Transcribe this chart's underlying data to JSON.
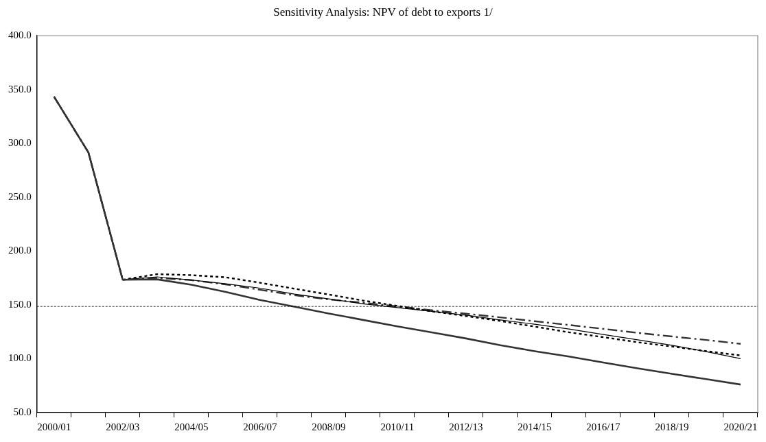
{
  "chart_data": {
    "type": "line",
    "title": "Sensitivity Analysis: NPV of debt to exports 1/",
    "categories": [
      "2000/01",
      null,
      "2002/03",
      null,
      "2004/05",
      null,
      "2006/07",
      null,
      "2008/09",
      null,
      "2010/11",
      null,
      "2012/13",
      null,
      "2014/15",
      null,
      "2016/17",
      null,
      "2018/19",
      null,
      "2020/21"
    ],
    "series": [
      {
        "color": "#333333",
        "line_style": "solid",
        "values": [
          343.3,
          291.6,
          173.3,
          173.7,
          168.7,
          162,
          154.5,
          148.3,
          142,
          136,
          130,
          124.5,
          118.8,
          112.5,
          107,
          102,
          96.5,
          91,
          86,
          81,
          76
        ]
      },
      {
        "color": "#000000",
        "line_style": "solid",
        "values": [
          343.3,
          291.6,
          173.3,
          176,
          173,
          169.5,
          165.5,
          160,
          155.5,
          151,
          147.5,
          144,
          140.5,
          136,
          132,
          127.5,
          122.5,
          117.5,
          112.5,
          106.5,
          100
        ]
      },
      {
        "color": "#000000",
        "line_style": "dotted",
        "values": [
          343.3,
          291.6,
          173.3,
          178.5,
          177.6,
          175.6,
          170.5,
          165,
          159.6,
          154,
          149,
          144,
          139.6,
          135,
          129.8,
          124.5,
          120,
          115.3,
          111.3,
          107,
          103
        ]
      },
      {
        "color": "#333333",
        "line_style": "dashed",
        "values": [
          343.3,
          291.6,
          173.3,
          175,
          173,
          169,
          164,
          159,
          155,
          152,
          148.5,
          145,
          141.8,
          138.4,
          134.8,
          131.3,
          127.7,
          124,
          120.6,
          117.4,
          113.8
        ]
      }
    ],
    "ylim": [
      50,
      400
    ],
    "yticks": [
      {
        "value": 50,
        "label": "50.0"
      },
      {
        "value": 100,
        "label": "100.0"
      },
      {
        "value": 150,
        "label": "150.0"
      },
      {
        "value": 200,
        "label": "200.0"
      },
      {
        "value": 250,
        "label": "250.0"
      },
      {
        "value": 300,
        "label": "300.0"
      },
      {
        "value": 350,
        "label": "350.0"
      },
      {
        "value": 400,
        "label": "400.0"
      }
    ],
    "ref_lines": [
      {
        "axis": "y",
        "value": 148.5,
        "color": "#000000",
        "line_style": "dashed"
      }
    ],
    "grid": false,
    "legend": false,
    "marker": "none"
  }
}
